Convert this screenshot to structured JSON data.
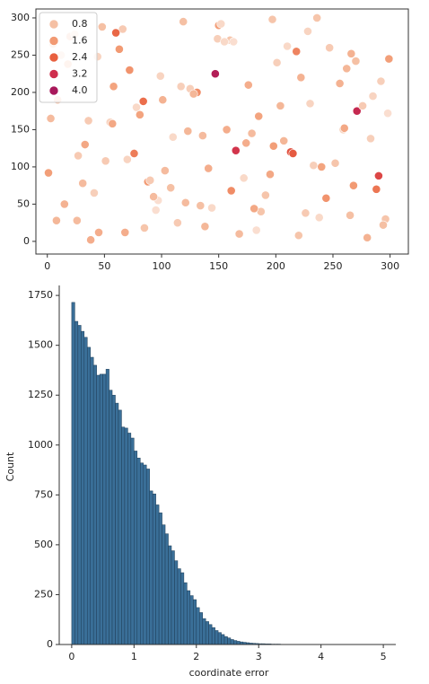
{
  "chart_data": [
    {
      "type": "scatter",
      "x": [
        12,
        45,
        78,
        103,
        150,
        187,
        222,
        259,
        288,
        5,
        33,
        66,
        97,
        131,
        168,
        201,
        240,
        271,
        296,
        20,
        55,
        88,
        119,
        144,
        176,
        213,
        247,
        280,
        9,
        41,
        72,
        110,
        138,
        160,
        195,
        230,
        265,
        299,
        27,
        60,
        93,
        125,
        157,
        183,
        218,
        252,
        285,
        15,
        48,
        81,
        114,
        147,
        172,
        207,
        236,
        268,
        292,
        3,
        38,
        70,
        101,
        134,
        163,
        198,
        226,
        262,
        290,
        24,
        57,
        85,
        117,
        141,
        179,
        210,
        244,
        276,
        8,
        44,
        76,
        108,
        152,
        185,
        220,
        256,
        283,
        31,
        63,
        95,
        128,
        165,
        191,
        228,
        260,
        294,
        18,
        51,
        84,
        121,
        149,
        174,
        204,
        238,
        270,
        1,
        36,
        68,
        99,
        136,
        161,
        197,
        233,
        266,
        298,
        26,
        58,
        90,
        123,
        155,
        181,
        215
      ],
      "y": [
        250,
        12,
        180,
        95,
        290,
        40,
        220,
        150,
        70,
        265,
        130,
        285,
        55,
        200,
        10,
        240,
        100,
        175,
        30,
        275,
        160,
        80,
        295,
        45,
        210,
        120,
        260,
        5,
        190,
        65,
        230,
        140,
        20,
        270,
        90,
        185,
        35,
        245,
        115,
        280,
        60,
        205,
        150,
        15,
        255,
        105,
        195,
        50,
        288,
        170,
        25,
        225,
        85,
        135,
        300,
        75,
        215,
        165,
        2,
        110,
        190,
        48,
        268,
        128,
        38,
        232,
        88,
        278,
        158,
        18,
        208,
        98,
        145,
        262,
        58,
        182,
        28,
        248,
        118,
        72,
        292,
        168,
        8,
        212,
        138,
        78,
        258,
        42,
        198,
        122,
        62,
        282,
        152,
        22,
        238,
        108,
        188,
        52,
        272,
        132,
        182,
        32,
        242,
        92,
        162,
        12,
        222,
        142,
        68,
        298,
        102,
        252,
        172,
        28,
        208,
        82,
        148,
        268,
        44,
        118
      ],
      "hue": [
        0.5,
        1.2,
        0.3,
        0.9,
        1.5,
        0.7,
        1.1,
        0.4,
        2.1,
        0.8,
        1.3,
        0.6,
        0.2,
        1.8,
        0.9,
        0.5,
        1.4,
        3.4,
        0.7,
        1.0,
        0.4,
        1.6,
        0.8,
        0.3,
        1.2,
        2.6,
        0.6,
        1.1,
        0.9,
        0.5,
        1.7,
        0.3,
        1.0,
        0.7,
        1.3,
        0.4,
        0.8,
        1.5,
        0.6,
        2.3,
        0.9,
        0.5,
        1.2,
        0.2,
        1.9,
        0.7,
        0.4,
        1.1,
        0.8,
        1.4,
        0.6,
        3.8,
        0.3,
        1.0,
        0.7,
        1.6,
        0.5,
        0.9,
        1.2,
        0.4,
        1.1,
        0.8,
        0.2,
        1.5,
        0.6,
        1.0,
        2.8,
        0.4,
        1.3,
        0.7,
        0.5,
        1.2,
        0.9,
        0.3,
        1.7,
        0.6,
        1.0,
        0.4,
        2.0,
        0.8,
        0.3,
        1.4,
        0.7,
        1.1,
        0.5,
        0.9,
        1.6,
        0.2,
        1.0,
        3.1,
        0.7,
        0.4,
        1.3,
        0.8,
        1.1,
        0.6,
        2.2,
        0.9,
        0.5,
        1.2,
        1.0,
        0.3,
        0.8,
        1.5,
        0.6,
        1.2,
        0.4,
        0.9,
        1.8,
        0.7,
        0.5,
        1.1,
        0.2,
        0.9,
        1.4,
        0.6,
        1.0,
        0.3,
        1.3,
        2.5
      ],
      "legend": [
        {
          "value": 0.8,
          "label": "0.8",
          "color": "#f5c0a4"
        },
        {
          "value": 1.6,
          "label": "1.6",
          "color": "#f29a73"
        },
        {
          "value": 2.4,
          "label": "2.4",
          "color": "#e8603f"
        },
        {
          "value": 3.2,
          "label": "3.2",
          "color": "#cf2e4d"
        },
        {
          "value": 4.0,
          "label": "4.0",
          "color": "#a8185a"
        }
      ],
      "legend_position": "upper left",
      "xlim": [
        -10,
        316
      ],
      "ylim": [
        -17,
        312
      ],
      "xticks": [
        0,
        50,
        100,
        150,
        200,
        250,
        300
      ],
      "yticks": [
        0,
        50,
        100,
        150,
        200,
        250,
        300
      ]
    },
    {
      "type": "histogram",
      "bins": [
        0,
        0.05,
        0.1,
        0.15,
        0.2,
        0.25,
        0.3,
        0.35,
        0.4,
        0.45,
        0.5,
        0.55,
        0.6,
        0.65,
        0.7,
        0.75,
        0.8,
        0.85,
        0.9,
        0.95,
        1,
        1.05,
        1.1,
        1.15,
        1.2,
        1.25,
        1.3,
        1.35,
        1.4,
        1.45,
        1.5,
        1.55,
        1.6,
        1.65,
        1.7,
        1.75,
        1.8,
        1.85,
        1.9,
        1.95,
        2,
        2.05,
        2.1,
        2.15,
        2.2,
        2.25,
        2.3,
        2.35,
        2.4,
        2.45,
        2.5,
        2.55,
        2.6,
        2.65,
        2.7,
        2.75,
        2.8,
        2.85,
        2.9,
        2.95,
        3,
        3.05,
        3.1,
        3.15,
        3.2,
        3.25,
        3.3,
        3.35,
        3.4,
        3.45,
        3.5,
        3.55,
        3.6,
        3.65,
        3.7,
        3.75,
        3.8,
        3.85
      ],
      "values": [
        1715,
        1620,
        1600,
        1570,
        1540,
        1490,
        1440,
        1400,
        1350,
        1355,
        1355,
        1380,
        1275,
        1250,
        1210,
        1175,
        1090,
        1085,
        1060,
        1035,
        970,
        935,
        910,
        900,
        880,
        770,
        755,
        700,
        660,
        600,
        555,
        495,
        470,
        420,
        380,
        360,
        310,
        270,
        245,
        225,
        185,
        160,
        130,
        115,
        100,
        85,
        70,
        60,
        50,
        40,
        33,
        25,
        20,
        16,
        13,
        11,
        9,
        7,
        6,
        5,
        4,
        4,
        3,
        3,
        2,
        2,
        2,
        1,
        1,
        1,
        1,
        1,
        0,
        1,
        0,
        0,
        1
      ],
      "color": "#3a6f98",
      "xlabel": "coordinate error",
      "ylabel": "Count",
      "xlim": [
        -0.2,
        5.2
      ],
      "ylim": [
        0,
        1800
      ],
      "xticks": [
        0,
        1,
        2,
        3,
        4,
        5
      ],
      "yticks": [
        0,
        250,
        500,
        750,
        1000,
        1250,
        1500,
        1750
      ]
    }
  ]
}
